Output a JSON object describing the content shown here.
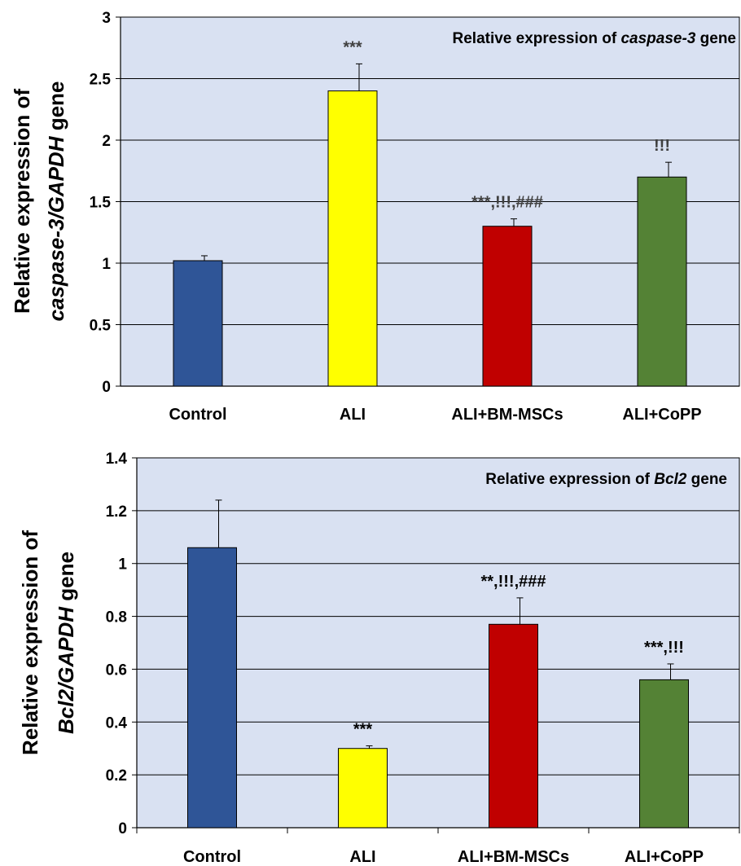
{
  "chart_data": [
    {
      "type": "bar",
      "title_parts": [
        {
          "text": "Relative expression of ",
          "italic": false
        },
        {
          "text": "caspase-3",
          "italic": true
        },
        {
          "text": " gene",
          "italic": false
        }
      ],
      "ylabel_line1": "Relative expression of",
      "ylabel_line2_parts": [
        {
          "text": "caspase-3/GAPDH",
          "italic": true
        },
        {
          "text": " gene",
          "italic": false
        }
      ],
      "categories": [
        "Control",
        "ALI",
        "ALI+BM-MSCs",
        "ALI+CoPP"
      ],
      "values": [
        1.02,
        2.4,
        1.3,
        1.7
      ],
      "errors": [
        0.04,
        0.22,
        0.06,
        0.12
      ],
      "annotations": [
        "",
        "***",
        "***,!!!,###",
        "!!!"
      ],
      "colors": [
        "#2F5597",
        "#FFFF00",
        "#C00000",
        "#548235"
      ],
      "ylim": [
        0,
        3
      ],
      "yticks": [
        0,
        0.5,
        1,
        1.5,
        2,
        2.5,
        3
      ],
      "ytick_labels": [
        "0",
        "0.5",
        "1",
        "1.5",
        "2",
        "2.5",
        "3"
      ],
      "grid": true,
      "plot_background": "#D9E1F2"
    },
    {
      "type": "bar",
      "title_parts": [
        {
          "text": "Relative expression of ",
          "italic": false
        },
        {
          "text": "Bcl2",
          "italic": true
        },
        {
          "text": " gene",
          "italic": false
        }
      ],
      "ylabel_line1": "Relative expression of",
      "ylabel_line2_parts": [
        {
          "text": "Bcl2/GAPDH",
          "italic": true
        },
        {
          "text": " gene",
          "italic": false
        }
      ],
      "categories": [
        "Control",
        "ALI",
        "ALI+BM-MSCs",
        "ALI+CoPP"
      ],
      "values": [
        1.06,
        0.3,
        0.77,
        0.56
      ],
      "errors": [
        0.18,
        0.01,
        0.1,
        0.06
      ],
      "annotations": [
        "",
        "***",
        "**,!!!,###",
        "***,!!!"
      ],
      "colors": [
        "#2F5597",
        "#FFFF00",
        "#C00000",
        "#548235"
      ],
      "ylim": [
        0,
        1.4
      ],
      "yticks": [
        0,
        0.2,
        0.4,
        0.6,
        0.8,
        1,
        1.2,
        1.4
      ],
      "ytick_labels": [
        "0",
        "0.2",
        "0.4",
        "0.6",
        "0.8",
        "1",
        "1.2",
        "1.4"
      ],
      "grid": true,
      "plot_background": "#D9E1F2"
    }
  ]
}
